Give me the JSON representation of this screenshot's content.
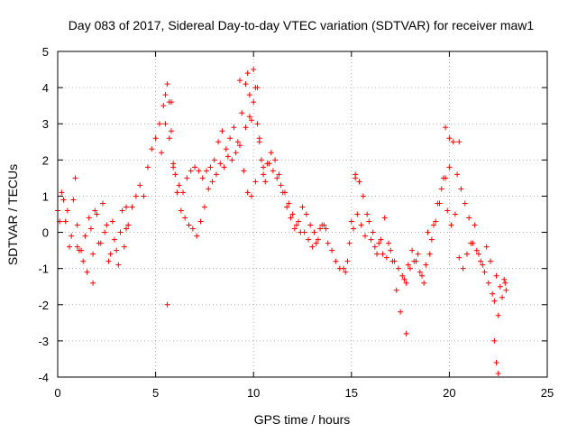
{
  "chart_data": {
    "type": "scatter",
    "title": "Day 083 of 2017, Sidereal Day-to-day VTEC variation (SDTVAR) for receiver maw1",
    "xlabel": "GPS time / hours",
    "ylabel": "SDTVAR / TECUs",
    "xlim": [
      0,
      25
    ],
    "ylim": [
      -4,
      5
    ],
    "xticks": [
      0,
      5,
      10,
      15,
      20,
      25
    ],
    "yticks": [
      -4,
      -3,
      -2,
      -1,
      0,
      1,
      2,
      3,
      4,
      5
    ],
    "xtick_labels": [
      "0",
      "5",
      "10",
      "15",
      "20",
      "25"
    ],
    "ytick_labels": [
      "-4",
      "-3",
      "-2",
      "-1",
      "0",
      "1",
      "2",
      "3",
      "4",
      "5"
    ],
    "grid": true,
    "marker": "+",
    "color": "#ff0000",
    "series": [
      {
        "name": "SDTVAR",
        "x": [
          0.0,
          0.2,
          0.4,
          0.6,
          0.8,
          1.0,
          1.2,
          1.4,
          1.6,
          1.8,
          2.0,
          2.2,
          2.4,
          2.6,
          2.8,
          3.0,
          3.2,
          3.4,
          3.6,
          3.8,
          4.0,
          4.2,
          4.4,
          4.6,
          4.8,
          5.0,
          5.2,
          5.4,
          5.5,
          5.6,
          5.7,
          5.8,
          5.9,
          6.0,
          6.2,
          6.4,
          6.6,
          6.8,
          7.0,
          7.2,
          7.4,
          7.6,
          7.8,
          8.0,
          8.2,
          8.4,
          8.6,
          8.8,
          9.0,
          9.2,
          9.4,
          9.6,
          9.7,
          9.8,
          9.9,
          10.0,
          10.1,
          10.2,
          10.3,
          10.4,
          10.5,
          10.6,
          10.8,
          11.0,
          11.2,
          11.4,
          11.6,
          11.8,
          12.0,
          12.2,
          12.4,
          12.6,
          12.8,
          13.0,
          13.2,
          13.4,
          13.6,
          13.8,
          14.0,
          14.2,
          14.4,
          14.6,
          14.8,
          15.0,
          15.2,
          15.4,
          15.6,
          15.8,
          16.0,
          16.2,
          16.4,
          16.6,
          16.8,
          17.0,
          17.2,
          17.4,
          17.6,
          17.8,
          18.0,
          18.2,
          18.4,
          18.6,
          18.8,
          19.0,
          19.2,
          19.4,
          19.6,
          19.8,
          20.0,
          20.2,
          20.4,
          20.6,
          20.8,
          21.0,
          21.2,
          21.4,
          21.6,
          21.8,
          22.0,
          22.2,
          22.4,
          22.6,
          22.8,
          22.9,
          0.1,
          0.3,
          0.5,
          0.7,
          0.9,
          1.1,
          1.3,
          1.5,
          1.7,
          1.9,
          2.1,
          2.3,
          2.5,
          2.7,
          2.9,
          3.1,
          3.3,
          3.5,
          5.3,
          5.5,
          5.7,
          5.9,
          6.1,
          6.3,
          6.5,
          6.7,
          6.9,
          7.1,
          7.3,
          7.5,
          7.7,
          7.9,
          8.1,
          8.3,
          8.5,
          8.7,
          8.9,
          9.1,
          9.3,
          9.5,
          9.7,
          9.9,
          10.1,
          10.3,
          10.5,
          10.7,
          10.9,
          11.1,
          11.3,
          11.5,
          11.7,
          11.9,
          12.1,
          12.3,
          12.5,
          12.7,
          12.9,
          13.1,
          13.3,
          13.5,
          13.7,
          14.7,
          14.9,
          15.1,
          15.3,
          15.5,
          15.7,
          15.9,
          16.1,
          16.3,
          16.5,
          16.7,
          16.9,
          17.1,
          17.3,
          17.5,
          17.7,
          17.9,
          18.1,
          18.3,
          18.5,
          18.7,
          18.9,
          19.1,
          19.3,
          19.5,
          19.7,
          19.9,
          20.1,
          20.3,
          20.5,
          20.7,
          20.9,
          21.1,
          21.3,
          21.5,
          21.7,
          21.9,
          22.1,
          22.3,
          22.5,
          22.7,
          22.85,
          1.0,
          1.8,
          3.5,
          5.6,
          5.8,
          9.3,
          9.6,
          9.8,
          10.0,
          10.2,
          15.2,
          17.8,
          19.8,
          20.0,
          20.5,
          22.3,
          22.4,
          22.5
        ],
        "y": [
          0.6,
          1.1,
          0.3,
          -0.4,
          0.9,
          0.2,
          -0.5,
          -0.1,
          0.4,
          -0.6,
          0.5,
          -0.3,
          0.0,
          -0.8,
          0.3,
          -0.5,
          0.0,
          -0.4,
          0.2,
          0.7,
          1.0,
          1.3,
          1.0,
          1.8,
          2.3,
          2.6,
          3.0,
          3.5,
          3.8,
          4.1,
          3.6,
          2.8,
          1.9,
          1.6,
          1.3,
          1.1,
          1.5,
          1.7,
          1.8,
          1.7,
          1.5,
          1.7,
          1.8,
          2.0,
          2.5,
          2.8,
          2.3,
          2.6,
          2.9,
          2.5,
          3.3,
          4.1,
          4.4,
          3.8,
          3.1,
          3.6,
          4.0,
          3.0,
          2.5,
          2.0,
          1.6,
          1.4,
          1.9,
          1.7,
          1.5,
          1.3,
          1.1,
          0.8,
          0.5,
          0.2,
          0.0,
          0.0,
          -0.2,
          -0.4,
          -0.3,
          0.1,
          0.2,
          -0.3,
          -0.5,
          -0.8,
          -1.0,
          -1.0,
          -0.8,
          0.3,
          1.5,
          1.4,
          1.0,
          0.5,
          -0.2,
          -0.4,
          -0.3,
          -0.6,
          -0.7,
          -0.5,
          -0.8,
          -1.0,
          -1.2,
          -1.4,
          -1.0,
          -0.8,
          -0.6,
          -1.2,
          -0.9,
          -0.6,
          0.2,
          0.8,
          1.2,
          1.5,
          1.8,
          2.5,
          1.6,
          1.2,
          0.8,
          0.4,
          -0.3,
          -0.5,
          -0.8,
          -1.1,
          -1.4,
          -1.7,
          -1.2,
          -1.5,
          -1.3,
          -1.6,
          0.3,
          0.9,
          0.6,
          -0.1,
          1.5,
          -0.5,
          -0.8,
          -1.1,
          0.1,
          0.6,
          -0.3,
          0.8,
          0.2,
          -0.6,
          -0.2,
          -0.9,
          0.6,
          0.1,
          2.2,
          3.0,
          2.6,
          1.8,
          1.1,
          0.6,
          0.4,
          0.2,
          0.1,
          -0.1,
          0.3,
          0.7,
          1.2,
          1.4,
          1.6,
          1.9,
          1.8,
          2.1,
          2.0,
          2.2,
          2.4,
          1.7,
          1.1,
          1.0,
          1.4,
          2.6,
          1.8,
          1.9,
          2.2,
          2.0,
          1.6,
          1.1,
          0.7,
          0.4,
          0.1,
          0.3,
          0.7,
          0.5,
          0.2,
          0.0,
          -0.2,
          0.2,
          0.1,
          -1.1,
          -0.3,
          0.1,
          0.5,
          0.2,
          -0.1,
          0.3,
          0.0,
          -0.6,
          -0.2,
          0.4,
          -0.3,
          -0.8,
          -1.6,
          -2.2,
          -1.3,
          -0.9,
          -0.5,
          -0.8,
          -1.1,
          -1.4,
          0.0,
          -0.2,
          0.3,
          0.8,
          1.5,
          0.6,
          0.2,
          0.5,
          -0.7,
          -1.0,
          -0.6,
          -0.3,
          0.2,
          -0.6,
          -0.9,
          -0.4,
          -0.8,
          -1.9,
          -2.3,
          -1.8,
          -1.4,
          -0.4,
          -1.4,
          0.7,
          -2.0,
          3.6,
          4.2,
          2.9,
          3.2,
          4.5,
          4.0,
          1.6,
          -2.8,
          2.9,
          2.6,
          2.5,
          -3.0,
          -3.6,
          -3.9
        ]
      }
    ]
  }
}
